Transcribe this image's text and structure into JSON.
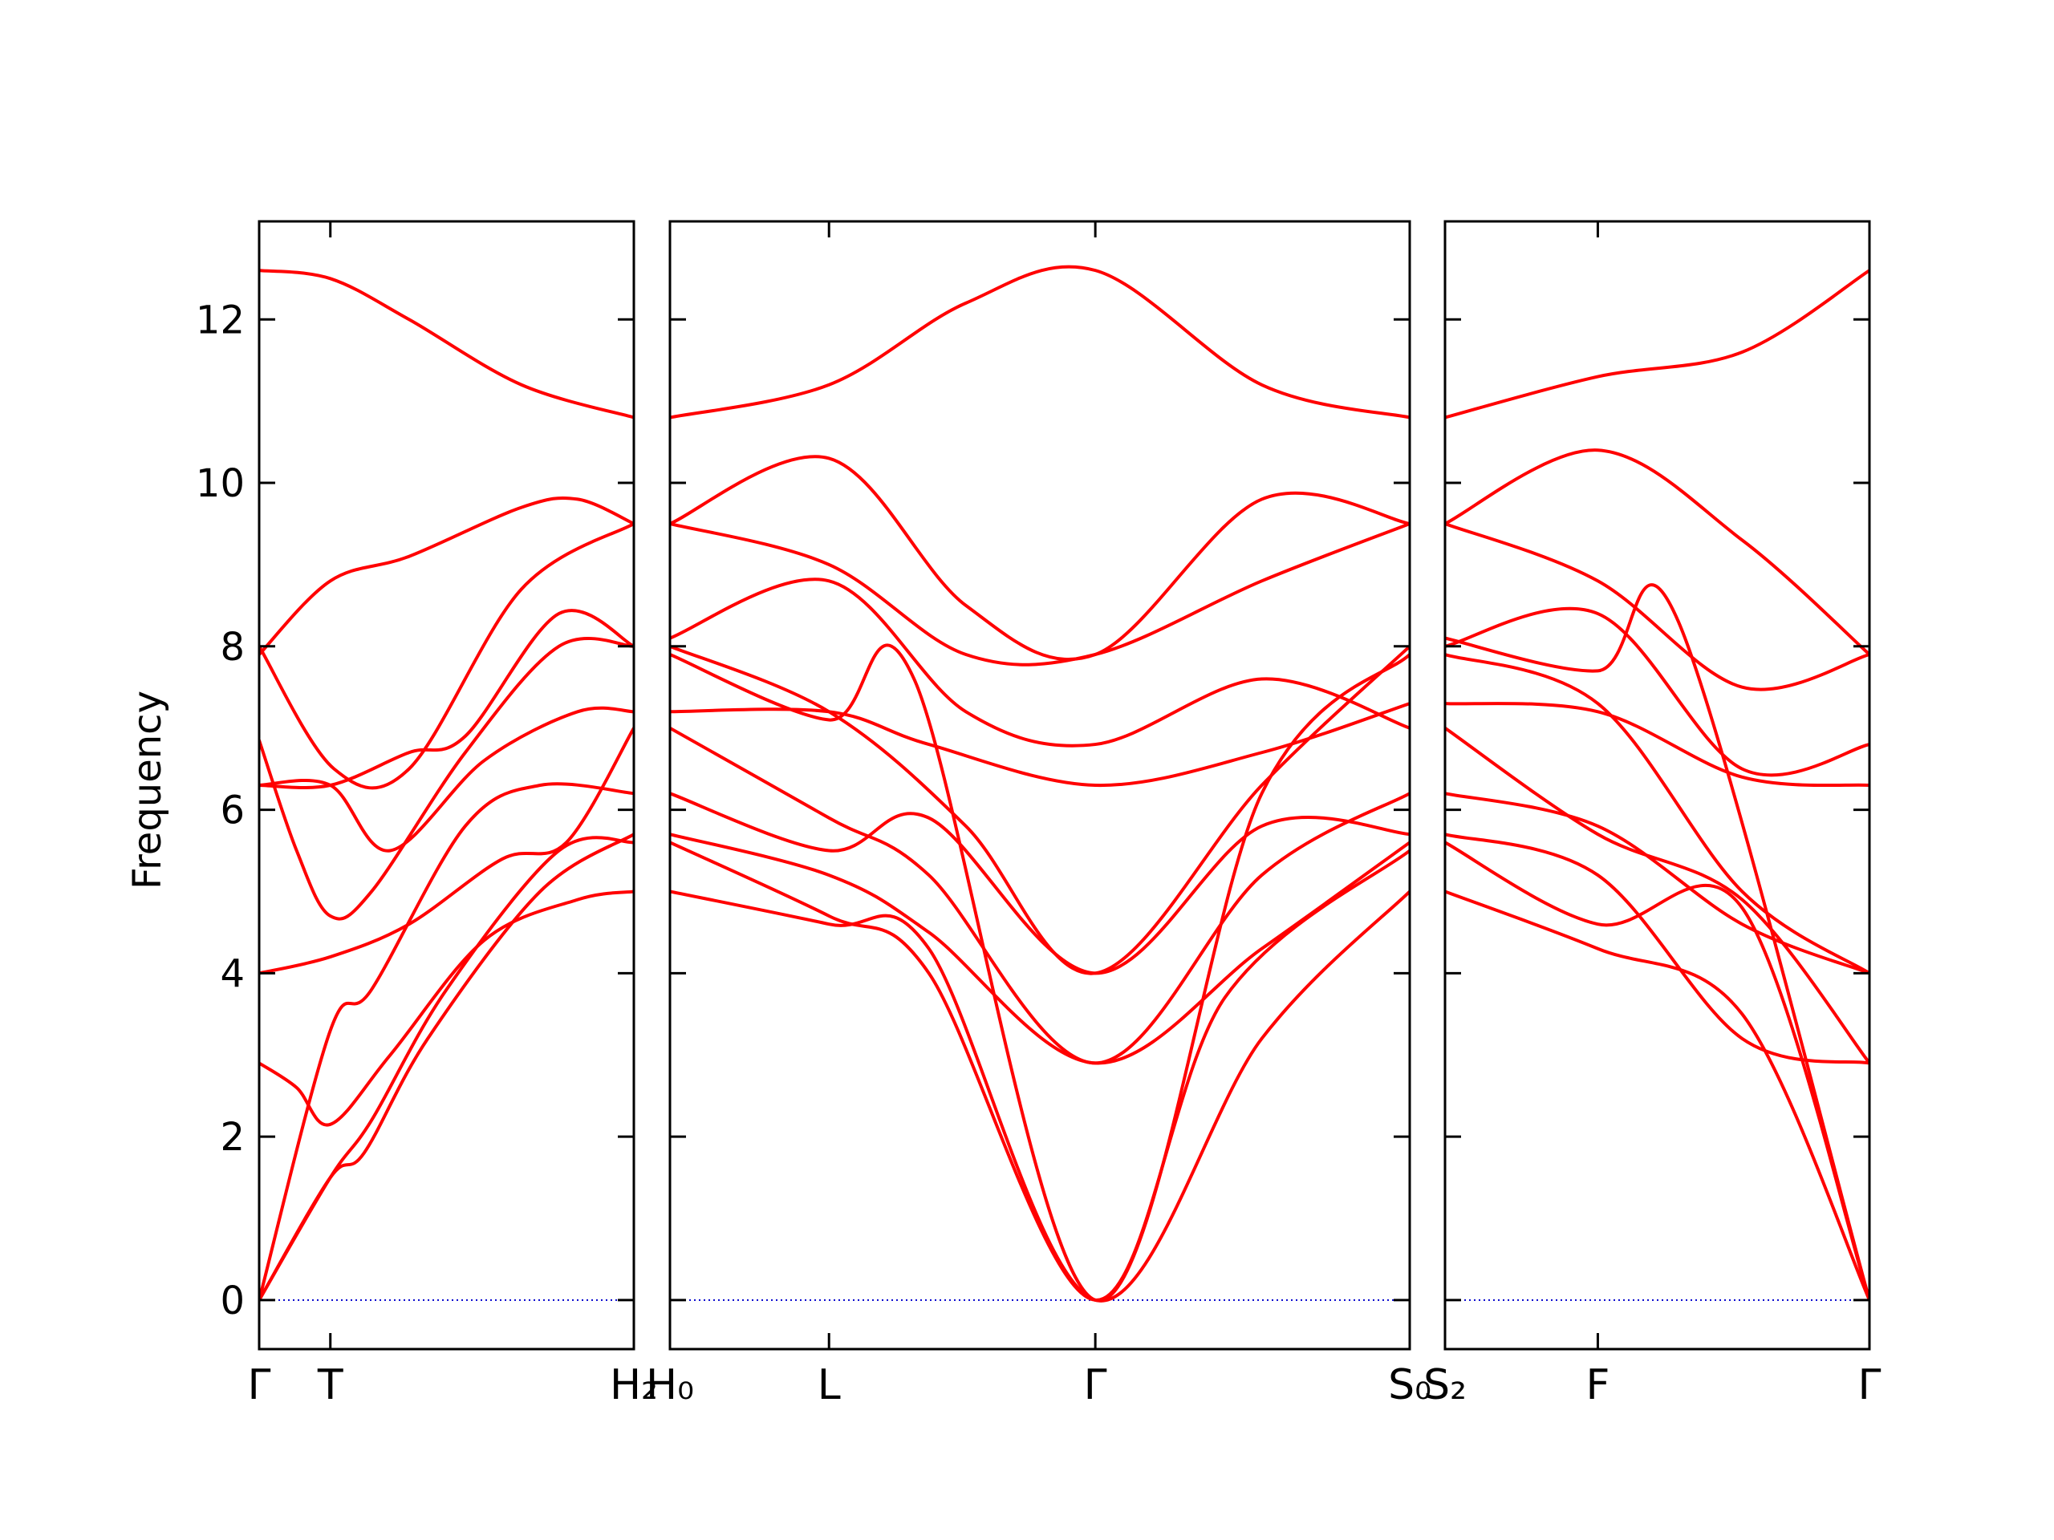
{
  "chart_data": {
    "type": "line",
    "title": "",
    "xlabel": "",
    "ylabel": "Frequency",
    "ylim": [
      -0.6,
      13.2
    ],
    "yticks": [
      0,
      2,
      4,
      6,
      8,
      10,
      12
    ],
    "grid": false,
    "legend": "none",
    "line_color": "#ff0000",
    "zero_line_color": "#0000cc",
    "panels": [
      {
        "xlim": [
          0,
          1
        ],
        "ticks": [
          {
            "x": 0.0,
            "label": "Γ"
          },
          {
            "x": 0.19,
            "label": "T"
          },
          {
            "x": 1.0,
            "label": "H₂"
          }
        ],
        "bands": [
          [
            [
              0,
              0
            ],
            [
              0.19,
              1.5
            ],
            [
              0.28,
              1.8
            ],
            [
              0.45,
              3.2
            ],
            [
              0.75,
              5.0
            ],
            [
              1,
              5.7
            ]
          ],
          [
            [
              0,
              0
            ],
            [
              0.19,
              1.5
            ],
            [
              0.3,
              2.2
            ],
            [
              0.5,
              3.8
            ],
            [
              0.8,
              5.5
            ],
            [
              1,
              5.6
            ]
          ],
          [
            [
              0,
              2.9
            ],
            [
              0.1,
              2.6
            ],
            [
              0.19,
              2.15
            ],
            [
              0.35,
              3.0
            ],
            [
              0.6,
              4.4
            ],
            [
              0.85,
              4.9
            ],
            [
              1,
              5.0
            ]
          ],
          [
            [
              0,
              0
            ],
            [
              0.19,
              3.3
            ],
            [
              0.3,
              3.8
            ],
            [
              0.55,
              5.8
            ],
            [
              0.75,
              6.3
            ],
            [
              1,
              6.2
            ]
          ],
          [
            [
              0,
              4.0
            ],
            [
              0.19,
              4.2
            ],
            [
              0.4,
              4.6
            ],
            [
              0.65,
              5.4
            ],
            [
              0.82,
              5.6
            ],
            [
              1,
              7.0
            ]
          ],
          [
            [
              0,
              6.85
            ],
            [
              0.1,
              5.5
            ],
            [
              0.19,
              4.7
            ],
            [
              0.3,
              5.0
            ],
            [
              0.55,
              6.7
            ],
            [
              0.8,
              8.0
            ],
            [
              1,
              8.0
            ]
          ],
          [
            [
              0,
              6.3
            ],
            [
              0.19,
              6.3
            ],
            [
              0.4,
              6.7
            ],
            [
              0.55,
              6.9
            ],
            [
              0.8,
              8.4
            ],
            [
              1,
              8.0
            ]
          ],
          [
            [
              0,
              6.3
            ],
            [
              0.19,
              6.3
            ],
            [
              0.35,
              5.5
            ],
            [
              0.6,
              6.6
            ],
            [
              0.85,
              7.2
            ],
            [
              1,
              7.2
            ]
          ],
          [
            [
              0,
              7.9
            ],
            [
              0.19,
              8.8
            ],
            [
              0.4,
              9.1
            ],
            [
              0.7,
              9.7
            ],
            [
              0.85,
              9.8
            ],
            [
              1,
              9.5
            ]
          ],
          [
            [
              0,
              12.6
            ],
            [
              0.19,
              12.5
            ],
            [
              0.4,
              12.0
            ],
            [
              0.7,
              11.2
            ],
            [
              1,
              10.8
            ]
          ],
          [
            [
              0,
              8.0
            ],
            [
              0.2,
              6.5
            ],
            [
              0.4,
              6.5
            ],
            [
              0.7,
              8.7
            ],
            [
              1,
              9.5
            ]
          ]
        ]
      },
      {
        "xlim": [
          0,
          1
        ],
        "ticks": [
          {
            "x": 0.0,
            "label": "H₀"
          },
          {
            "x": 0.215,
            "label": "L"
          },
          {
            "x": 0.575,
            "label": "Γ"
          },
          {
            "x": 1.0,
            "label": "S₀"
          }
        ],
        "bands": [
          [
            [
              0,
              5.0
            ],
            [
              0.215,
              4.6
            ],
            [
              0.35,
              4.3
            ],
            [
              0.575,
              0
            ],
            [
              0.8,
              3.2
            ],
            [
              1,
              5.0
            ]
          ],
          [
            [
              0,
              5.6
            ],
            [
              0.215,
              4.7
            ],
            [
              0.35,
              4.0
            ],
            [
              0.575,
              0
            ],
            [
              0.75,
              3.7
            ],
            [
              1,
              5.5
            ]
          ],
          [
            [
              0,
              5.7
            ],
            [
              0.215,
              5.2
            ],
            [
              0.35,
              4.5
            ],
            [
              0.575,
              2.9
            ],
            [
              0.8,
              4.3
            ],
            [
              1,
              5.6
            ]
          ],
          [
            [
              0,
              6.2
            ],
            [
              0.215,
              5.5
            ],
            [
              0.35,
              5.9
            ],
            [
              0.575,
              4.0
            ],
            [
              0.8,
              5.8
            ],
            [
              1,
              5.7
            ]
          ],
          [
            [
              0,
              7.0
            ],
            [
              0.215,
              5.9
            ],
            [
              0.35,
              5.2
            ],
            [
              0.575,
              2.9
            ],
            [
              0.8,
              5.2
            ],
            [
              1,
              6.2
            ]
          ],
          [
            [
              0,
              7.2
            ],
            [
              0.215,
              7.2
            ],
            [
              0.35,
              6.8
            ],
            [
              0.575,
              6.3
            ],
            [
              0.8,
              6.7
            ],
            [
              1,
              7.3
            ]
          ],
          [
            [
              0,
              7.9
            ],
            [
              0.215,
              7.1
            ],
            [
              0.33,
              7.6
            ],
            [
              0.575,
              0
            ],
            [
              0.8,
              6.2
            ],
            [
              1,
              7.9
            ]
          ],
          [
            [
              0,
              8.0
            ],
            [
              0.215,
              7.2
            ],
            [
              0.4,
              5.8
            ],
            [
              0.575,
              4.0
            ],
            [
              0.8,
              6.3
            ],
            [
              1,
              8.0
            ]
          ],
          [
            [
              0,
              8.1
            ],
            [
              0.215,
              8.8
            ],
            [
              0.4,
              7.2
            ],
            [
              0.575,
              6.8
            ],
            [
              0.8,
              7.6
            ],
            [
              1,
              7.0
            ]
          ],
          [
            [
              0,
              9.5
            ],
            [
              0.215,
              9.0
            ],
            [
              0.4,
              7.9
            ],
            [
              0.575,
              7.9
            ],
            [
              0.8,
              8.8
            ],
            [
              1,
              9.5
            ]
          ],
          [
            [
              0,
              9.5
            ],
            [
              0.215,
              10.3
            ],
            [
              0.4,
              8.5
            ],
            [
              0.575,
              7.9
            ],
            [
              0.8,
              9.8
            ],
            [
              1,
              9.5
            ]
          ],
          [
            [
              0,
              10.8
            ],
            [
              0.215,
              11.2
            ],
            [
              0.4,
              12.2
            ],
            [
              0.575,
              12.6
            ],
            [
              0.8,
              11.2
            ],
            [
              1,
              10.8
            ]
          ]
        ]
      },
      {
        "xlim": [
          0,
          1
        ],
        "ticks": [
          {
            "x": 0.0,
            "label": "S₂"
          },
          {
            "x": 0.36,
            "label": "F"
          },
          {
            "x": 1.0,
            "label": "Γ"
          }
        ],
        "bands": [
          [
            [
              0,
              5.0
            ],
            [
              0.36,
              4.3
            ],
            [
              0.7,
              3.5
            ],
            [
              1,
              0
            ]
          ],
          [
            [
              0,
              5.6
            ],
            [
              0.36,
              4.6
            ],
            [
              0.7,
              4.8
            ],
            [
              1,
              0
            ]
          ],
          [
            [
              0,
              5.7
            ],
            [
              0.36,
              5.2
            ],
            [
              0.7,
              3.2
            ],
            [
              1,
              2.9
            ]
          ],
          [
            [
              0,
              6.2
            ],
            [
              0.36,
              5.8
            ],
            [
              0.7,
              4.6
            ],
            [
              1,
              4.0
            ]
          ],
          [
            [
              0,
              7.0
            ],
            [
              0.36,
              5.7
            ],
            [
              0.7,
              4.9
            ],
            [
              1,
              2.9
            ]
          ],
          [
            [
              0,
              7.3
            ],
            [
              0.36,
              7.2
            ],
            [
              0.7,
              6.4
            ],
            [
              1,
              6.3
            ]
          ],
          [
            [
              0,
              7.9
            ],
            [
              0.36,
              7.3
            ],
            [
              0.7,
              5.0
            ],
            [
              1,
              4.0
            ]
          ],
          [
            [
              0,
              8.0
            ],
            [
              0.36,
              8.4
            ],
            [
              0.7,
              6.5
            ],
            [
              1,
              6.8
            ]
          ],
          [
            [
              0,
              8.1
            ],
            [
              0.36,
              7.7
            ],
            [
              0.55,
              8.3
            ],
            [
              1,
              0
            ]
          ],
          [
            [
              0,
              9.5
            ],
            [
              0.36,
              8.8
            ],
            [
              0.7,
              7.5
            ],
            [
              1,
              7.9
            ]
          ],
          [
            [
              0,
              9.5
            ],
            [
              0.36,
              10.4
            ],
            [
              0.7,
              9.3
            ],
            [
              1,
              7.9
            ]
          ],
          [
            [
              0,
              10.8
            ],
            [
              0.36,
              11.3
            ],
            [
              0.7,
              11.6
            ],
            [
              1,
              12.6
            ]
          ]
        ]
      }
    ]
  }
}
